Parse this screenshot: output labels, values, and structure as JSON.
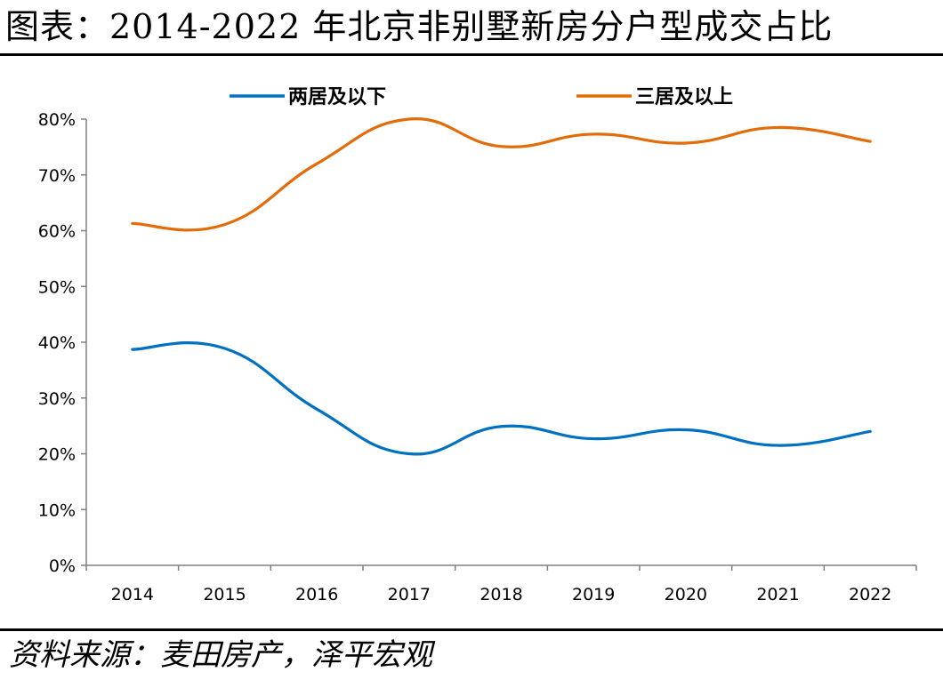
{
  "header": {
    "title": "图表：2014-2022 年北京非别墅新房分户型成交占比"
  },
  "footer": {
    "source": "资料来源：麦田房产，泽平宏观"
  },
  "chart_data": {
    "type": "line",
    "x": [
      "2014",
      "2015",
      "2016",
      "2017",
      "2018",
      "2019",
      "2020",
      "2021",
      "2022"
    ],
    "series": [
      {
        "name": "两居及以下",
        "color": "#0070C0",
        "values": [
          38.7,
          38.9,
          28.0,
          20.0,
          24.9,
          22.7,
          24.3,
          21.5,
          24.0
        ]
      },
      {
        "name": "三居及以上",
        "color": "#E36C09",
        "values": [
          61.3,
          61.1,
          72.0,
          80.0,
          75.1,
          77.3,
          75.7,
          78.5,
          76.0
        ]
      }
    ],
    "yticks": [
      "0%",
      "10%",
      "20%",
      "30%",
      "40%",
      "50%",
      "60%",
      "70%",
      "80%"
    ],
    "ylim": [
      0,
      80
    ],
    "grid": false,
    "legend_position": "top"
  }
}
